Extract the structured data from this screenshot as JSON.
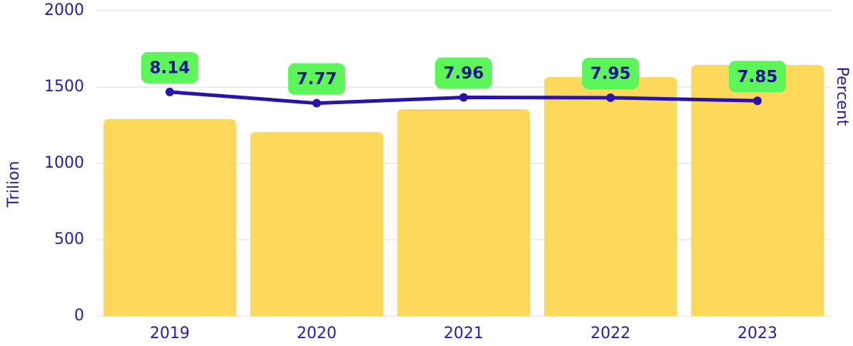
{
  "chart_data": {
    "type": "bar-line",
    "categories": [
      "2019",
      "2020",
      "2021",
      "2022",
      "2023"
    ],
    "ylabel": "Trilion",
    "y2label": "Percent",
    "ylim": [
      0,
      2000
    ],
    "yticks": [
      0,
      500,
      1000,
      1500,
      2000
    ],
    "y2lim": [
      0.8,
      10.8
    ],
    "grid": true,
    "series": [
      {
        "type": "bar",
        "color": "#fdd95b",
        "values": [
          1290,
          1206,
          1355,
          1565,
          1645
        ]
      },
      {
        "type": "line",
        "axis": "y2",
        "color": "#2b12a8",
        "label_color": "#5cf55a",
        "values": [
          8.14,
          7.77,
          7.96,
          7.95,
          7.85
        ]
      }
    ]
  }
}
